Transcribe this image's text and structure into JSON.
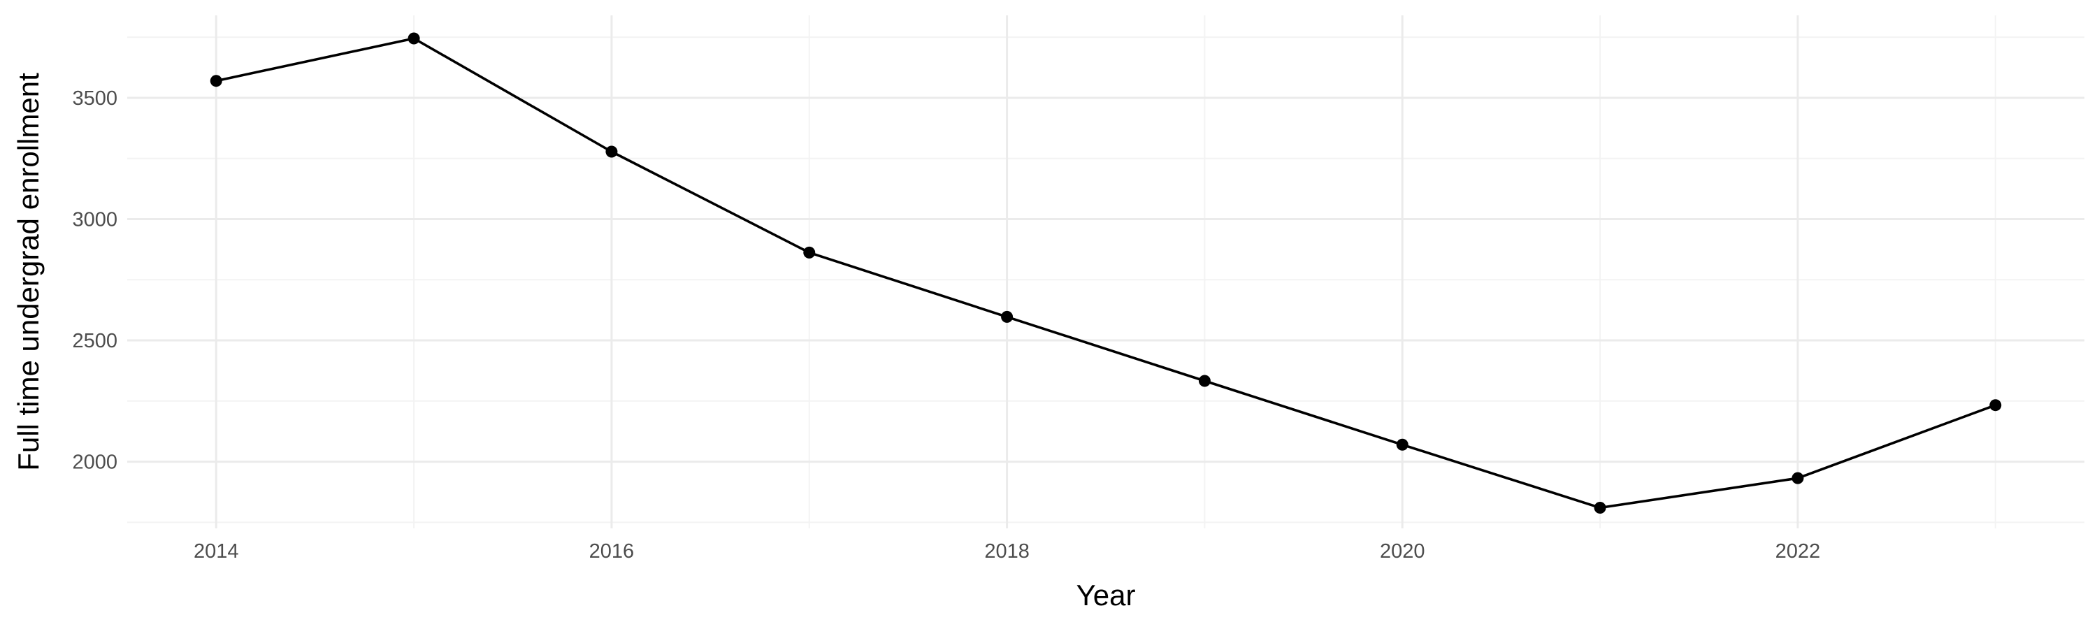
{
  "chart_data": {
    "type": "line",
    "title": "",
    "xlabel": "Year",
    "ylabel": "Full time undergrad enrollment",
    "x": [
      2014,
      2015,
      2016,
      2017,
      2018,
      2019,
      2020,
      2021,
      2022,
      2023
    ],
    "series": [
      {
        "values": [
          3570,
          3745,
          3278,
          2862,
          2597,
          2333,
          2070,
          1810,
          1932,
          2233
        ]
      }
    ],
    "xlim": [
      2013.55,
      2023.45
    ],
    "ylim": [
      1725,
      3840
    ],
    "x_ticks": [
      2014,
      2016,
      2018,
      2020,
      2022
    ],
    "x_minor_ticks": [
      2015,
      2017,
      2019,
      2021,
      2023
    ],
    "y_ticks": [
      2000,
      2500,
      3000,
      3500
    ],
    "y_minor_ticks": [
      1750,
      2250,
      2750,
      3250,
      3750
    ],
    "grid": true,
    "legend": "none",
    "colors": {
      "line": "#000000",
      "point": "#000000",
      "grid_major": "#ebebeb",
      "grid_minor": "#f3f3f3",
      "tick_text": "#4d4d4d",
      "axis_text": "#000000"
    }
  }
}
